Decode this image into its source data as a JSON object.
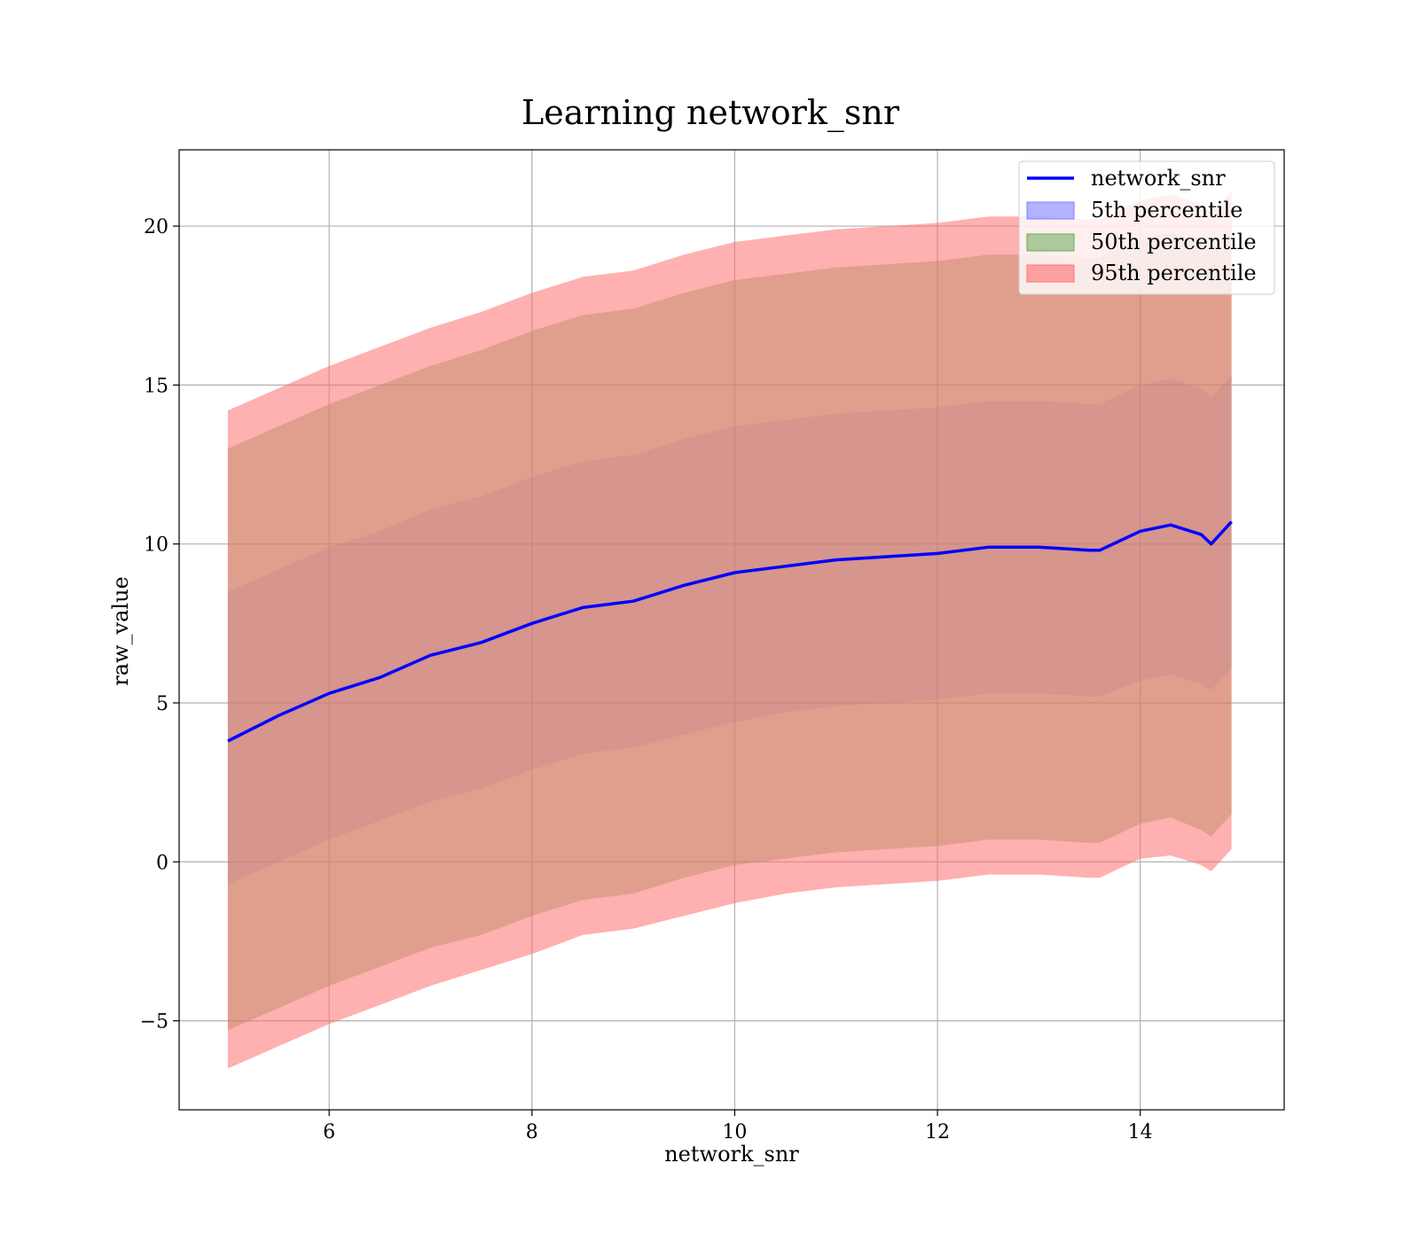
{
  "chart_data": {
    "type": "line",
    "title": "Learning network_snr",
    "xlabel": "network_snr",
    "ylabel": "raw_value",
    "xlim": [
      4.52,
      15.42
    ],
    "ylim": [
      -7.8,
      22.4
    ],
    "xticks": [
      6,
      8,
      10,
      12,
      14
    ],
    "yticks": [
      -5,
      0,
      5,
      10,
      15,
      20
    ],
    "xtick_labels": [
      "6",
      "8",
      "10",
      "12",
      "14"
    ],
    "ytick_labels": [
      "−5",
      "0",
      "5",
      "10",
      "15",
      "20"
    ],
    "grid": true,
    "legend_position": "top-right",
    "x": [
      5.0,
      5.5,
      6.0,
      6.5,
      7.0,
      7.5,
      8.0,
      8.5,
      9.0,
      9.5,
      10.0,
      10.5,
      11.0,
      11.5,
      12.0,
      12.5,
      13.0,
      13.5,
      13.6,
      14.0,
      14.3,
      14.6,
      14.7,
      14.9
    ],
    "series": [
      {
        "name": "network_snr",
        "kind": "line",
        "color": "#0000ff",
        "values": [
          3.8,
          4.6,
          5.3,
          5.8,
          6.5,
          6.9,
          7.5,
          8.0,
          8.2,
          8.7,
          9.1,
          9.3,
          9.5,
          9.6,
          9.7,
          9.9,
          9.9,
          9.8,
          9.8,
          10.4,
          10.6,
          10.3,
          10.0,
          10.7
        ]
      },
      {
        "name": "5th percentile",
        "kind": "band",
        "color": "#7f7fff",
        "lower": [
          -0.7,
          0.0,
          0.7,
          1.3,
          1.9,
          2.3,
          2.9,
          3.4,
          3.6,
          4.0,
          4.4,
          4.7,
          4.9,
          5.0,
          5.1,
          5.3,
          5.3,
          5.2,
          5.2,
          5.7,
          5.9,
          5.6,
          5.4,
          6.1
        ],
        "upper": [
          8.5,
          9.2,
          9.9,
          10.4,
          11.1,
          11.5,
          12.1,
          12.6,
          12.8,
          13.3,
          13.7,
          13.9,
          14.1,
          14.2,
          14.3,
          14.5,
          14.5,
          14.4,
          14.4,
          15.0,
          15.2,
          14.9,
          14.6,
          15.3
        ]
      },
      {
        "name": "50th percentile",
        "kind": "band",
        "color": "#66aa55",
        "lower": [
          -5.3,
          -4.6,
          -3.9,
          -3.3,
          -2.7,
          -2.3,
          -1.7,
          -1.2,
          -1.0,
          -0.5,
          -0.1,
          0.1,
          0.3,
          0.4,
          0.5,
          0.7,
          0.7,
          0.6,
          0.6,
          1.2,
          1.4,
          1.0,
          0.8,
          1.5
        ],
        "upper": [
          13.0,
          13.7,
          14.4,
          15.0,
          15.6,
          16.1,
          16.7,
          17.2,
          17.4,
          17.9,
          18.3,
          18.5,
          18.7,
          18.8,
          18.9,
          19.1,
          19.1,
          19.0,
          19.0,
          19.6,
          19.8,
          19.5,
          19.2,
          19.9
        ]
      },
      {
        "name": "95th percentile",
        "kind": "band",
        "color": "#ff7070",
        "lower": [
          -6.5,
          -5.8,
          -5.1,
          -4.5,
          -3.9,
          -3.4,
          -2.9,
          -2.3,
          -2.1,
          -1.7,
          -1.3,
          -1.0,
          -0.8,
          -0.7,
          -0.6,
          -0.4,
          -0.4,
          -0.5,
          -0.5,
          0.1,
          0.2,
          -0.1,
          -0.3,
          0.4
        ],
        "upper": [
          14.2,
          14.9,
          15.6,
          16.2,
          16.8,
          17.3,
          17.9,
          18.4,
          18.6,
          19.1,
          19.5,
          19.7,
          19.9,
          20.0,
          20.1,
          20.3,
          20.3,
          20.2,
          20.2,
          20.8,
          21.0,
          20.7,
          20.4,
          21.1
        ]
      }
    ]
  }
}
